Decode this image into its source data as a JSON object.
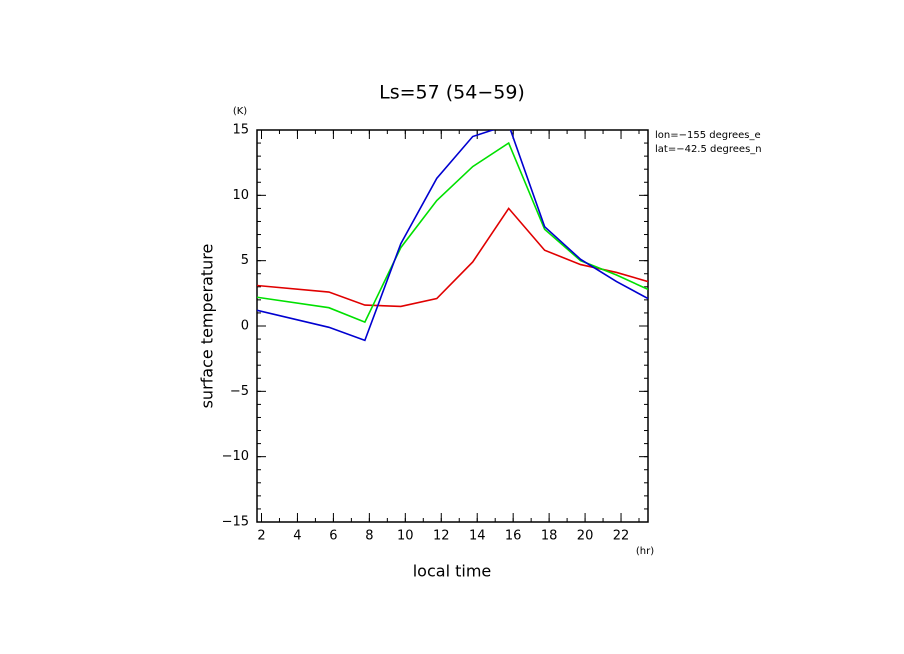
{
  "chart_data": {
    "type": "line",
    "title": "Ls=57 (54−59)",
    "y_label": "surface temperature",
    "y_unit": "(K)",
    "x_label": "local time",
    "x_unit": "(hr)",
    "annotations": [
      "lon=−155 degrees_e",
      "lat=−42.5 degrees_n"
    ],
    "x": [
      1.75,
      5.75,
      7.75,
      9.75,
      11.75,
      13.75,
      15.75,
      17.75,
      19.75,
      21.75,
      23.5
    ],
    "series": [
      {
        "color": "#e00000",
        "values": [
          3.1,
          2.6,
          1.6,
          1.5,
          2.1,
          4.9,
          9.0,
          5.8,
          4.7,
          4.1,
          3.4
        ]
      },
      {
        "color": "#00e000",
        "values": [
          2.2,
          1.4,
          0.3,
          6.0,
          9.6,
          12.2,
          14.0,
          7.4,
          5.0,
          3.9,
          2.8
        ]
      },
      {
        "color": "#0000d0",
        "values": [
          1.2,
          -0.1,
          -1.1,
          6.3,
          11.3,
          14.5,
          15.4,
          7.6,
          5.1,
          3.4,
          2.1
        ]
      }
    ],
    "xlim": [
      1.75,
      23.5
    ],
    "xticks": [
      2,
      4,
      6,
      8,
      10,
      12,
      14,
      16,
      18,
      20,
      22
    ],
    "ylim": [
      -15,
      15
    ],
    "yticks": [
      {
        "value": -15,
        "label": "−15"
      },
      {
        "value": -10,
        "label": "−10"
      },
      {
        "value": -5,
        "label": "−5"
      },
      0,
      5,
      10,
      15
    ],
    "grid": false
  }
}
